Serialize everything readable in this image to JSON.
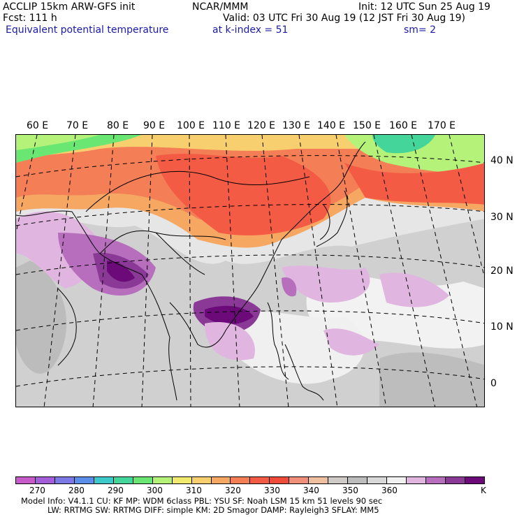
{
  "header": {
    "model": "ACCLIP 15km ARW-GFS init",
    "org": "NCAR/MMM",
    "init": "Init: 12 UTC Sun 25 Aug 19",
    "fcst": "Fcst:  111 h",
    "valid": "Valid: 03 UTC Fri 30 Aug 19 (12 JST Fri 30 Aug 19)",
    "field": "Equivalent potential temperature",
    "level": "at k-index =  51",
    "smooth": "sm= 2"
  },
  "map": {
    "lon_labels": [
      "60 E",
      "70 E",
      "80 E",
      "90 E",
      "100 E",
      "110 E",
      "120 E",
      "130 E",
      "140 E",
      "150 E",
      "160 E",
      "170 E"
    ],
    "lat_labels": [
      "40 N",
      "30 N",
      "20 N",
      "10 N",
      "0"
    ]
  },
  "colorbar": {
    "colors": [
      "#c65bc9",
      "#a35fd9",
      "#7c79e6",
      "#5a8ee8",
      "#3dc9c9",
      "#44d59a",
      "#6ae672",
      "#b4f27a",
      "#f1ea6e",
      "#f8cf6e",
      "#f6a863",
      "#f47e55",
      "#f45b45",
      "#ee4b3a",
      "#f0907a",
      "#eec0a0",
      "#d0cbc6",
      "#bdbdbd",
      "#d9d9d9",
      "#f2f2f2",
      "#e0b6e0",
      "#b76fbd",
      "#8a3996",
      "#6b0a78"
    ],
    "labels": [
      "270",
      "280",
      "290",
      "300",
      "310",
      "320",
      "330",
      "340",
      "350",
      "360",
      "K"
    ]
  },
  "model_info": {
    "line1": "Model Info: V4.1.1     CU: KF        MP: WDM 6class   PBL: YSU       SF: Noah LSM     15 km    51 levels   90 sec",
    "line2": "LW: RRTMG    SW: RRTMG   DIFF: simple KM: 2D Smagor DAMP: Rayleigh3   SFLAY: MM5"
  }
}
